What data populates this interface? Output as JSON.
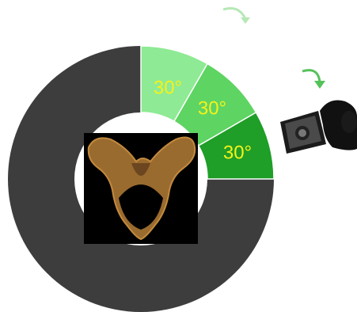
{
  "diagram": {
    "segments": [
      {
        "label": "30°",
        "fill": "#8eea94"
      },
      {
        "label": "30°",
        "fill": "#5ed463"
      },
      {
        "label": "30°",
        "fill": "#1f9e28"
      }
    ],
    "remainder_fill": "#3d3d3d",
    "label_color": "#f3f31a",
    "arrow_colors": [
      "#b5e8b5",
      "#55c25a"
    ],
    "images": [
      {
        "name": "pelvis-bone-photo",
        "description_icon": "pelvis-image"
      },
      {
        "name": "camera-in-hand",
        "description_icon": "camera-icon"
      }
    ]
  }
}
